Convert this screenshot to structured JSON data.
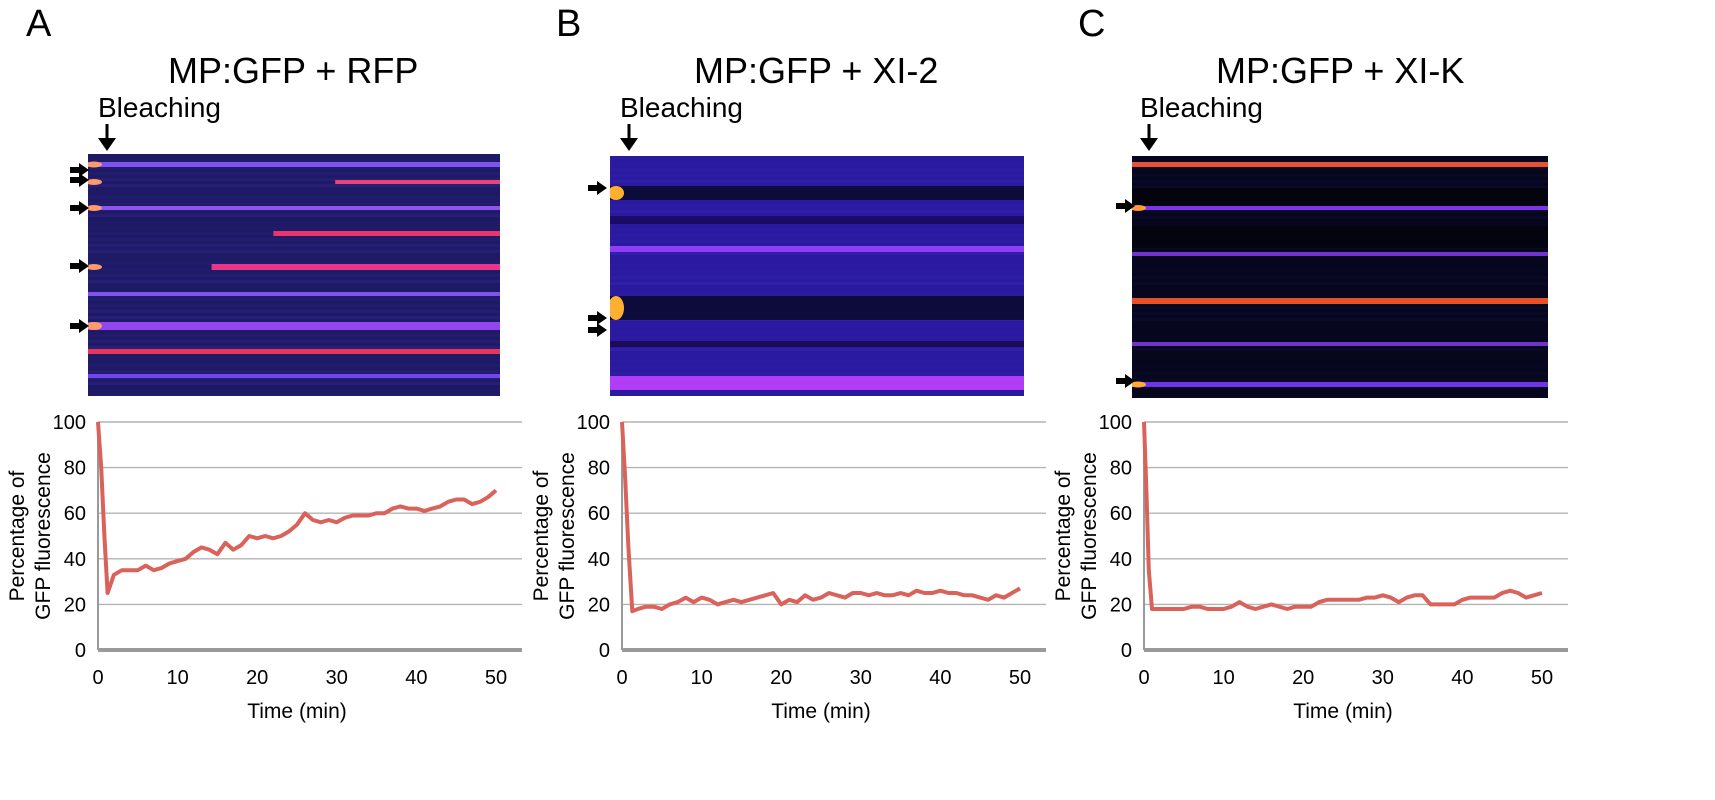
{
  "panels": [
    {
      "letter": "A",
      "title": "MP:GFP + RFP",
      "bleaching_label": "Bleaching",
      "kymograph": {
        "palette": [
          "#0a0a2a",
          "#2a1a7a",
          "#5a2ad0",
          "#9a3aff",
          "#ff3a5a",
          "#ff9a2a"
        ],
        "background": "#1e1a66",
        "bright_bands": [
          "purple",
          "magenta",
          "pink",
          "pink",
          "pink",
          "pink"
        ],
        "arrow_count": 5
      },
      "chart_data": {
        "type": "line",
        "title": "",
        "xlabel": "Time (min)",
        "ylabel_line1": "Percentage of",
        "ylabel_line2": "GFP fluorescence",
        "xlim": [
          0,
          50
        ],
        "ylim": [
          0,
          100
        ],
        "x_ticks": [
          "0",
          "10",
          "20",
          "30",
          "40",
          "50"
        ],
        "y_ticks": [
          "0",
          "20",
          "40",
          "60",
          "80",
          "100"
        ],
        "grid": true,
        "line_color": "#d9625a",
        "series": [
          {
            "x": [
              0,
              0.4,
              0.8,
              1.2,
              2,
              3,
              4,
              5,
              6,
              7,
              8,
              9,
              10,
              11,
              12,
              13,
              14,
              15,
              16,
              17,
              18,
              19,
              20,
              21,
              22,
              23,
              24,
              25,
              26,
              27,
              28,
              29,
              30,
              31,
              32,
              33,
              34,
              35,
              36,
              37,
              38,
              39,
              40,
              41,
              42,
              43,
              44,
              45,
              46,
              47,
              48,
              49,
              50
            ],
            "y": [
              100,
              80,
              50,
              25,
              33,
              35,
              35,
              35,
              37,
              35,
              36,
              38,
              39,
              40,
              43,
              45,
              44,
              42,
              47,
              44,
              46,
              50,
              49,
              50,
              49,
              50,
              52,
              55,
              60,
              57,
              56,
              57,
              56,
              58,
              59,
              59,
              59,
              60,
              60,
              62,
              63,
              62,
              62,
              61,
              62,
              63,
              65,
              66,
              66,
              64,
              65,
              67,
              70
            ]
          }
        ]
      }
    },
    {
      "letter": "B",
      "title": "MP:GFP + XI-2",
      "bleaching_label": "Bleaching",
      "kymograph": {
        "palette": [
          "#05051a",
          "#2a1a8a",
          "#6a20e0",
          "#9a30ff",
          "#ff4a6a",
          "#ff9a2a"
        ],
        "background": "#2a1aa0",
        "bright_bands": [
          "dark",
          "violet",
          "dark",
          "violet",
          "magenta"
        ],
        "arrow_count": 3
      },
      "chart_data": {
        "type": "line",
        "title": "",
        "xlabel": "Time (min)",
        "ylabel_line1": "Percentage of",
        "ylabel_line2": "GFP fluorescence",
        "xlim": [
          0,
          50
        ],
        "ylim": [
          0,
          100
        ],
        "x_ticks": [
          "0",
          "10",
          "20",
          "30",
          "40",
          "50"
        ],
        "y_ticks": [
          "0",
          "20",
          "40",
          "60",
          "80",
          "100"
        ],
        "grid": true,
        "line_color": "#d9625a",
        "series": [
          {
            "x": [
              0,
              0.4,
              0.8,
              1.3,
              2,
              3,
              4,
              5,
              6,
              7,
              8,
              9,
              10,
              11,
              12,
              13,
              14,
              15,
              16,
              17,
              18,
              19,
              20,
              21,
              22,
              23,
              24,
              25,
              26,
              27,
              28,
              29,
              30,
              31,
              32,
              33,
              34,
              35,
              36,
              37,
              38,
              39,
              40,
              41,
              42,
              43,
              44,
              45,
              46,
              47,
              48,
              49,
              50
            ],
            "y": [
              100,
              75,
              45,
              17,
              18,
              19,
              19,
              18,
              20,
              21,
              23,
              21,
              23,
              22,
              20,
              21,
              22,
              21,
              22,
              23,
              24,
              25,
              20,
              22,
              21,
              24,
              22,
              23,
              25,
              24,
              23,
              25,
              25,
              24,
              25,
              24,
              24,
              25,
              24,
              26,
              25,
              25,
              26,
              25,
              25,
              24,
              24,
              23,
              22,
              24,
              23,
              25,
              27
            ]
          }
        ]
      }
    },
    {
      "letter": "C",
      "title": "MP:GFP + XI-K",
      "bleaching_label": "Bleaching",
      "kymograph": {
        "palette": [
          "#020210",
          "#150a40",
          "#3a1aa0",
          "#7a2ae0",
          "#ff3a5a",
          "#ffaa2a"
        ],
        "background": "#06061c",
        "bright_bands": [
          "red",
          "violet",
          "violet",
          "orange",
          "violet",
          "violet"
        ],
        "arrow_count": 2
      },
      "chart_data": {
        "type": "line",
        "title": "",
        "xlabel": "Time (min)",
        "ylabel_line1": "Percentage of",
        "ylabel_line2": "GFP fluorescence",
        "xlim": [
          0,
          50
        ],
        "ylim": [
          0,
          100
        ],
        "x_ticks": [
          "0",
          "10",
          "20",
          "30",
          "40",
          "50"
        ],
        "y_ticks": [
          "0",
          "20",
          "40",
          "60",
          "80",
          "100"
        ],
        "grid": true,
        "line_color": "#d9625a",
        "series": [
          {
            "x": [
              0,
              0.3,
              0.6,
              1,
              2,
              3,
              4,
              5,
              6,
              7,
              8,
              9,
              10,
              11,
              12,
              13,
              14,
              15,
              16,
              17,
              18,
              19,
              20,
              21,
              22,
              23,
              24,
              25,
              26,
              27,
              28,
              29,
              30,
              31,
              32,
              33,
              34,
              35,
              36,
              37,
              38,
              39,
              40,
              41,
              42,
              43,
              44,
              45,
              46,
              47,
              48,
              49,
              50
            ],
            "y": [
              100,
              70,
              35,
              18,
              18,
              18,
              18,
              18,
              19,
              19,
              18,
              18,
              18,
              19,
              21,
              19,
              18,
              19,
              20,
              19,
              18,
              19,
              19,
              19,
              21,
              22,
              22,
              22,
              22,
              22,
              23,
              23,
              24,
              23,
              21,
              23,
              24,
              24,
              20,
              20,
              20,
              20,
              22,
              23,
              23,
              23,
              23,
              25,
              26,
              25,
              23,
              24,
              25
            ]
          }
        ]
      }
    }
  ]
}
